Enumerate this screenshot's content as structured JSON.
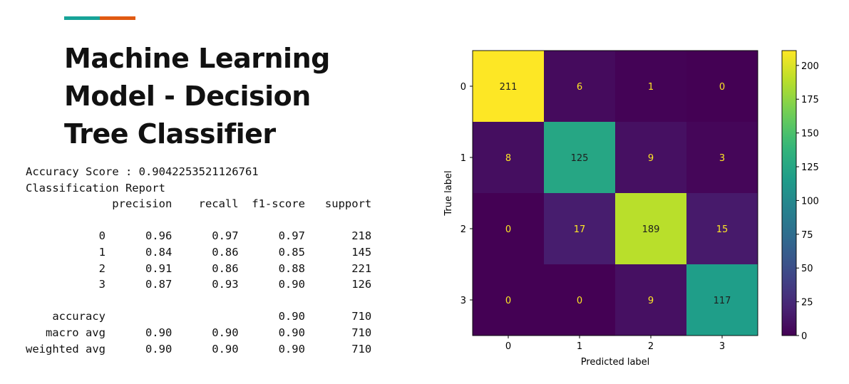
{
  "accent_colors": {
    "teal": "#17a398",
    "orange": "#e05a12"
  },
  "slide": {
    "title_lines": [
      "Machine Learning",
      "Model - Decision",
      "Tree Classifier"
    ]
  },
  "report": {
    "accuracy_line": "Accuracy Score : 0.9042253521126761",
    "report_title": "Classification Report",
    "header": [
      "precision",
      "recall",
      "f1-score",
      "support"
    ],
    "rows": [
      {
        "label": "0",
        "precision": "0.96",
        "recall": "0.97",
        "f1": "0.97",
        "support": "218"
      },
      {
        "label": "1",
        "precision": "0.84",
        "recall": "0.86",
        "f1": "0.85",
        "support": "145"
      },
      {
        "label": "2",
        "precision": "0.91",
        "recall": "0.86",
        "f1": "0.88",
        "support": "221"
      },
      {
        "label": "3",
        "precision": "0.87",
        "recall": "0.93",
        "f1": "0.90",
        "support": "126"
      }
    ],
    "summary": [
      {
        "label": "accuracy",
        "precision": "",
        "recall": "",
        "f1": "0.90",
        "support": "710"
      },
      {
        "label": "macro avg",
        "precision": "0.90",
        "recall": "0.90",
        "f1": "0.90",
        "support": "710"
      },
      {
        "label": "weighted avg",
        "precision": "0.90",
        "recall": "0.90",
        "f1": "0.90",
        "support": "710"
      }
    ]
  },
  "chart_data": {
    "type": "heatmap",
    "title": "",
    "xlabel": "Predicted label",
    "ylabel": "True label",
    "x_categories": [
      "0",
      "1",
      "2",
      "3"
    ],
    "y_categories": [
      "0",
      "1",
      "2",
      "3"
    ],
    "values": [
      [
        211,
        6,
        1,
        0
      ],
      [
        8,
        125,
        9,
        3
      ],
      [
        0,
        17,
        189,
        15
      ],
      [
        0,
        0,
        9,
        117
      ]
    ],
    "colormap": "viridis",
    "colorbar": {
      "range": [
        0,
        211
      ],
      "ticks": [
        0,
        25,
        50,
        75,
        100,
        125,
        150,
        175,
        200
      ]
    },
    "grid": false,
    "legend": "colorbar-right"
  }
}
